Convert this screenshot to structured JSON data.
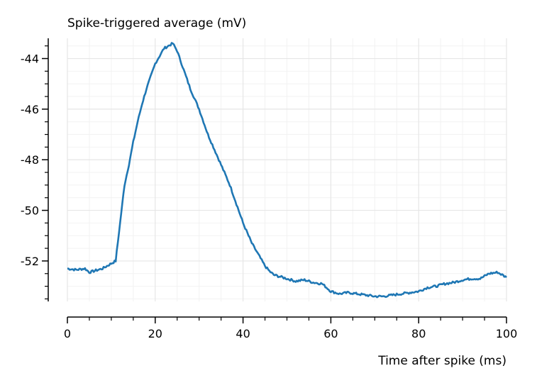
{
  "chart_data": {
    "type": "line",
    "title": "Spike-triggered average (mV)",
    "xlabel": "Time after spike (ms)",
    "ylabel": "",
    "xlim": [
      0,
      100
    ],
    "ylim": [
      -53.6,
      -43.2
    ],
    "xticks": [
      0,
      20,
      40,
      60,
      80,
      100
    ],
    "xtick_labels": [
      "0",
      "20",
      "40",
      "60",
      "80",
      "100"
    ],
    "yticks": [
      -44,
      -46,
      -48,
      -50,
      -52
    ],
    "ytick_labels": [
      "-44",
      "-46",
      "-48",
      "-50",
      "-52"
    ],
    "grid": true,
    "series": [
      {
        "color": "#1f77b4",
        "x": [
          0,
          2,
          4,
          5,
          6,
          8,
          10,
          11,
          12,
          13,
          14,
          15,
          16,
          17,
          18,
          19,
          20,
          21,
          22,
          23,
          24,
          25,
          26,
          27,
          28,
          29,
          30,
          31,
          32,
          33,
          34,
          35,
          36,
          37,
          38,
          39,
          40,
          41,
          42,
          43,
          44,
          45,
          46,
          47,
          48,
          50,
          52,
          54,
          56,
          58,
          60,
          62,
          64,
          66,
          68,
          70,
          72,
          74,
          76,
          78,
          80,
          82,
          84,
          86,
          88,
          90,
          92,
          94,
          96,
          98,
          100
        ],
        "y": [
          -52.3,
          -52.35,
          -52.3,
          -52.45,
          -52.4,
          -52.3,
          -52.1,
          -52.0,
          -50.5,
          -49.0,
          -48.2,
          -47.3,
          -46.5,
          -45.8,
          -45.2,
          -44.7,
          -44.2,
          -43.9,
          -43.6,
          -43.5,
          -43.4,
          -43.7,
          -44.2,
          -44.7,
          -45.2,
          -45.6,
          -46.0,
          -46.5,
          -47.0,
          -47.4,
          -47.8,
          -48.2,
          -48.6,
          -49.0,
          -49.5,
          -50.0,
          -50.5,
          -50.9,
          -51.3,
          -51.6,
          -51.9,
          -52.2,
          -52.4,
          -52.55,
          -52.6,
          -52.7,
          -52.8,
          -52.75,
          -52.85,
          -52.9,
          -53.2,
          -53.3,
          -53.25,
          -53.3,
          -53.35,
          -53.4,
          -53.4,
          -53.35,
          -53.3,
          -53.25,
          -53.2,
          -53.05,
          -53.0,
          -52.9,
          -52.85,
          -52.75,
          -52.7,
          -52.7,
          -52.5,
          -52.45,
          -52.65
        ]
      }
    ]
  }
}
